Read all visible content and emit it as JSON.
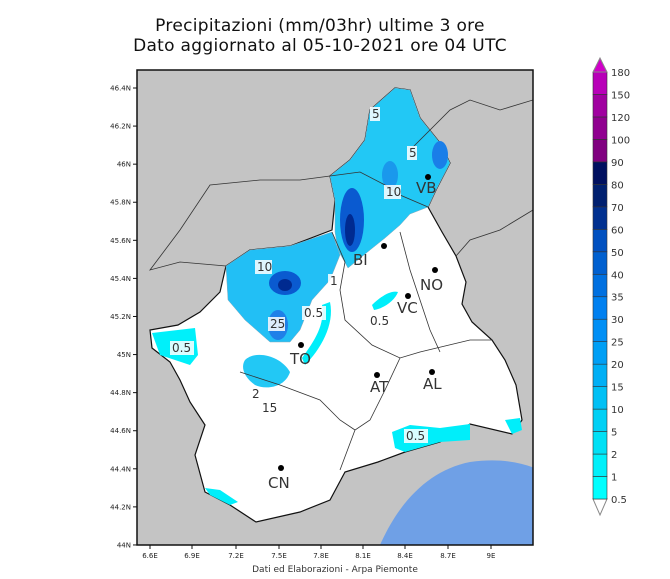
{
  "title": {
    "line1": "Precipitazioni (mm/03hr) ultime 3 ore",
    "line2": "Dato aggiornato al 05-10-2021 ore 04 UTC"
  },
  "axes": {
    "lon_ticks": [
      "6.6E",
      "6.9E",
      "7.2E",
      "7.5E",
      "7.8E",
      "8.1E",
      "8.4E",
      "8.7E",
      "9E"
    ],
    "lat_ticks": [
      "46.4N",
      "46.2N",
      "46N",
      "45.8N",
      "45.6N",
      "45.4N",
      "45.2N",
      "45N",
      "44.8N",
      "44.6N",
      "44.4N",
      "44.2N",
      "44N"
    ]
  },
  "cities": [
    {
      "label": "VB"
    },
    {
      "label": "BI"
    },
    {
      "label": "NO"
    },
    {
      "label": "VC"
    },
    {
      "label": "TO"
    },
    {
      "label": "AT"
    },
    {
      "label": "AL"
    },
    {
      "label": "CN"
    }
  ],
  "contour_labels": [
    "5",
    "5",
    "10",
    "10",
    "0.5",
    "25",
    "0.5",
    "0.5",
    "2",
    "0.5",
    "1",
    "15"
  ],
  "colorbar": {
    "labels": [
      "0.5",
      "1",
      "2",
      "5",
      "10",
      "15",
      "20",
      "25",
      "30",
      "35",
      "40",
      "50",
      "60",
      "70",
      "80",
      "90",
      "100",
      "120",
      "150",
      "180"
    ],
    "colors": [
      "#00ffff",
      "#00f0fa",
      "#00e0f5",
      "#00d0f5",
      "#00c0f5",
      "#00aff5",
      "#009ff5",
      "#008ff5",
      "#0080f0",
      "#0070e0",
      "#0060d0",
      "#0050c0",
      "#003090",
      "#002070",
      "#001060",
      "#800080",
      "#900090",
      "#a000a0",
      "#b800b8",
      "#d000c8"
    ],
    "below_color": "#ffffff"
  },
  "map_colors": {
    "land_outside": "#c4c4c4",
    "sea": "#6fa0e6",
    "region": "#ffffff"
  },
  "footer": "Dati ed Elaborazioni - Arpa Piemonte"
}
